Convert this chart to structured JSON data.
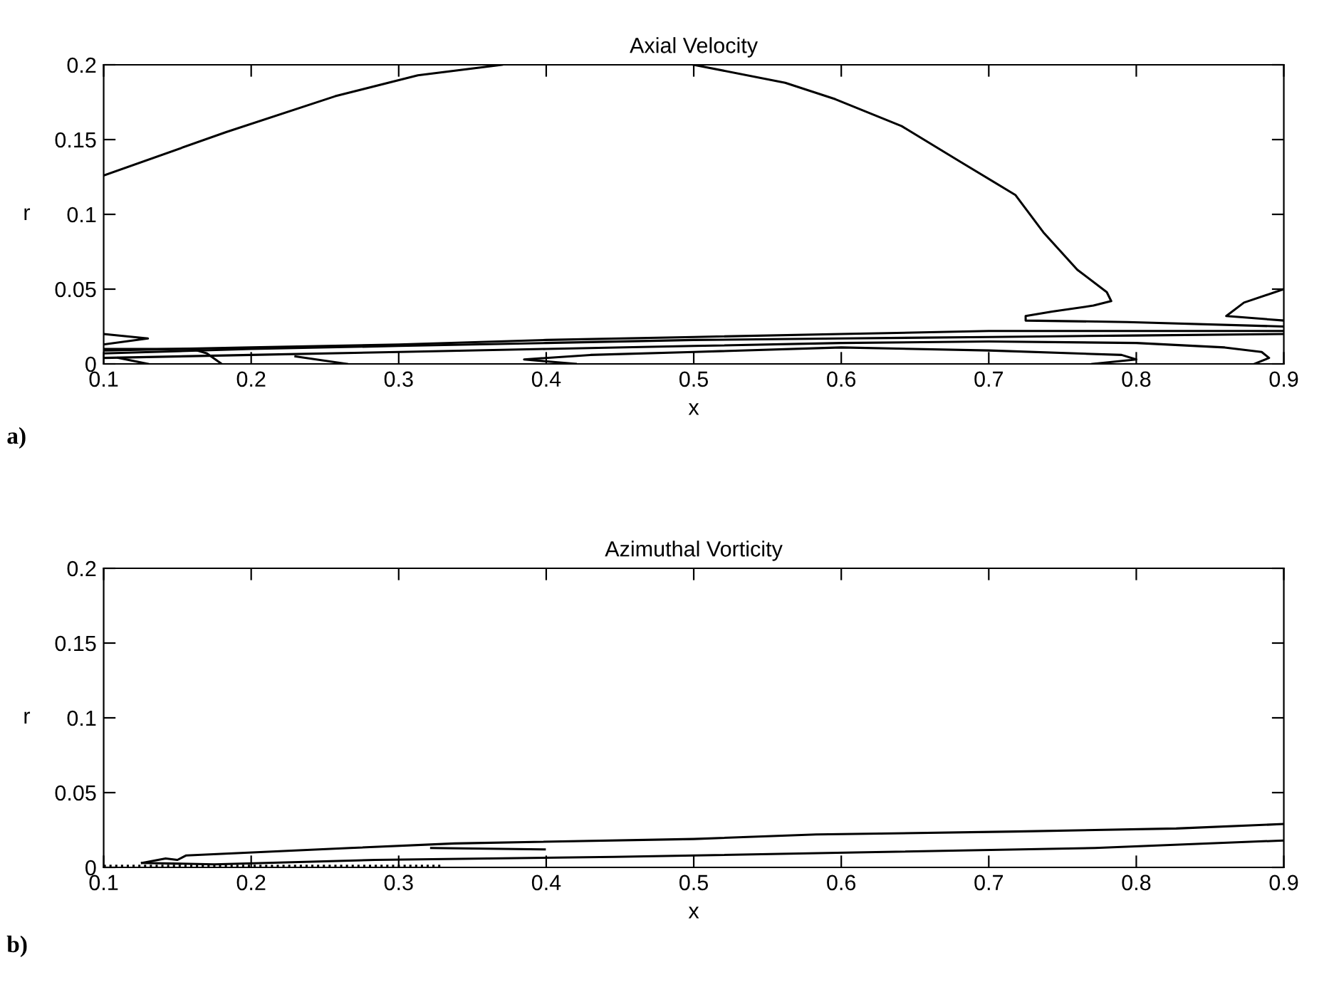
{
  "chart_data": [
    {
      "type": "line",
      "title": "Axial Velocity",
      "xlabel": "x",
      "ylabel": "r",
      "annotations": [
        "a)"
      ],
      "xlim": [
        0.1,
        0.9
      ],
      "ylim": [
        0,
        0.2
      ],
      "xticks": [
        0.1,
        0.2,
        0.3,
        0.4,
        0.5,
        0.6,
        0.7,
        0.8,
        0.9
      ],
      "yticks": [
        0,
        0.05,
        0.1,
        0.15,
        0.2
      ],
      "grid": false,
      "legend": false,
      "marker": "none",
      "line_style": "solid",
      "series": [
        {
          "color": "#000000",
          "x": [
            0.1,
            0.183,
            0.257,
            0.313,
            0.37,
            0.435,
            0.5,
            0.562,
            0.596,
            0.641,
            0.681,
            0.718,
            0.737,
            0.76,
            0.78,
            0.783,
            0.771,
            0.743,
            0.725,
            0.725,
            0.794,
            0.9
          ],
          "values": [
            0.126,
            0.155,
            0.179,
            0.193,
            0.2,
            null,
            0.2,
            0.188,
            0.177,
            0.159,
            0.135,
            0.113,
            0.088,
            0.063,
            0.048,
            0.042,
            0.039,
            0.035,
            0.032,
            0.029,
            0.028,
            0.025
          ]
        },
        {
          "color": "#000000",
          "x": [
            0.9,
            0.873,
            0.861,
            0.9
          ],
          "values": [
            0.05,
            0.041,
            0.032,
            0.029
          ]
        },
        {
          "color": "#000000",
          "x": [
            0.1,
            0.2,
            0.3,
            0.4,
            0.5,
            0.6,
            0.7,
            0.8,
            0.9
          ],
          "values": [
            0.009,
            0.011,
            0.013,
            0.016,
            0.018,
            0.02,
            0.022,
            0.022,
            0.022
          ]
        },
        {
          "color": "#000000",
          "x": [
            0.1,
            0.2,
            0.3,
            0.4,
            0.5,
            0.6,
            0.7,
            0.8,
            0.9
          ],
          "values": [
            0.007,
            0.01,
            0.012,
            0.014,
            0.016,
            0.017,
            0.018,
            0.019,
            0.02
          ]
        },
        {
          "color": "#000000",
          "x": [
            0.1,
            0.2,
            0.3,
            0.4,
            0.5,
            0.6,
            0.7,
            0.8,
            0.86,
            0.885,
            0.89,
            0.88
          ],
          "values": [
            0.004,
            0.006,
            0.008,
            0.01,
            0.012,
            0.014,
            0.015,
            0.014,
            0.011,
            0.008,
            0.004,
            0.0
          ]
        },
        {
          "color": "#000000",
          "x": [
            0.42,
            0.385,
            0.43,
            0.5,
            0.6,
            0.7,
            0.79,
            0.8,
            0.77
          ],
          "values": [
            0.0,
            0.003,
            0.006,
            0.008,
            0.011,
            0.009,
            0.006,
            0.003,
            0.0
          ]
        },
        {
          "color": "#000000",
          "x": [
            0.1,
            0.13,
            0.1
          ],
          "values": [
            0.02,
            0.017,
            0.013
          ]
        },
        {
          "color": "#000000",
          "x": [
            0.1,
            0.16,
            0.17,
            0.18
          ],
          "values": [
            0.01,
            0.01,
            0.007,
            0.0
          ]
        },
        {
          "color": "#000000",
          "x": [
            0.11,
            0.13
          ],
          "values": [
            0.004,
            0.0
          ]
        },
        {
          "color": "#000000",
          "x": [
            0.23,
            0.265
          ],
          "values": [
            0.005,
            0.0
          ]
        }
      ]
    },
    {
      "type": "line",
      "title": "Azimuthal Vorticity",
      "xlabel": "x",
      "ylabel": "r",
      "annotations": [
        "b)"
      ],
      "xlim": [
        0.1,
        0.9
      ],
      "ylim": [
        0,
        0.2
      ],
      "xticks": [
        0.1,
        0.2,
        0.3,
        0.4,
        0.5,
        0.6,
        0.7,
        0.8,
        0.9
      ],
      "yticks": [
        0,
        0.05,
        0.1,
        0.15,
        0.2
      ],
      "grid": false,
      "legend": false,
      "marker": "none",
      "line_style": "solid",
      "series": [
        {
          "color": "#000000",
          "x": [
            0.126,
            0.142,
            0.15,
            0.156,
            0.267,
            0.338,
            0.5,
            0.583,
            0.718,
            0.827,
            0.9
          ],
          "values": [
            0.003,
            0.006,
            0.005,
            0.008,
            0.013,
            0.016,
            0.019,
            0.022,
            0.024,
            0.026,
            0.029
          ]
        },
        {
          "color": "#000000",
          "x": [
            0.126,
            0.175,
            0.284,
            0.446,
            0.61,
            0.772,
            0.9
          ],
          "values": [
            0.003,
            0.002,
            0.005,
            0.007,
            0.01,
            0.013,
            0.018
          ]
        },
        {
          "color": "#000000",
          "x": [
            0.322,
            0.399
          ],
          "values": [
            0.013,
            0.012
          ]
        },
        {
          "color": "#000000",
          "line_style": "dotted",
          "x": [
            0.1,
            0.33
          ],
          "values": [
            0.001,
            0.001
          ]
        }
      ]
    }
  ]
}
